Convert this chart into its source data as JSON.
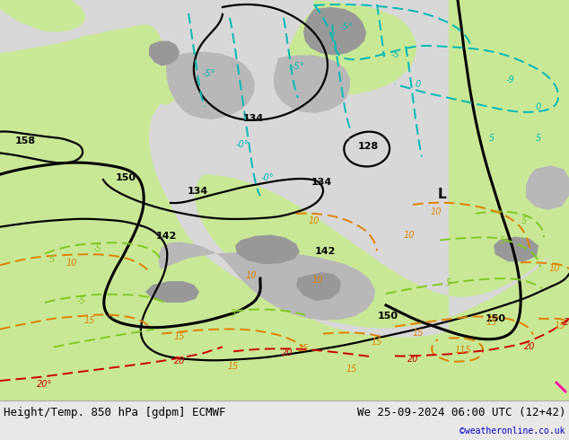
{
  "title_left": "Height/Temp. 850 hPa [gdpm] ECMWF",
  "title_right": "We 25-09-2024 06:00 UTC (12+42)",
  "copyright": "©weatheronline.co.uk",
  "bg_color": "#f0f0f0",
  "fig_width": 6.34,
  "fig_height": 4.9,
  "dpi": 100,
  "colors": {
    "land_light_green": "#c8e896",
    "land_mid_green": "#a8d060",
    "sea_light_gray": "#d8d8d8",
    "sea_mid_gray": "#b8b8b8",
    "mountain_gray": "#989898",
    "geopotential": "#000000",
    "temp_zero_cyan": "#00b8b8",
    "temp_neg_cyan": "#00d0d0",
    "temp_pos_lime": "#80c820",
    "temp_orange": "#e08000",
    "temp_red": "#cc0000",
    "temp_pink": "#ff00aa",
    "bottom_bg": "#e8e8e8",
    "bottom_line": "#aaaaaa",
    "copyright_blue": "#0000cc"
  },
  "font_size_geo_label": 8,
  "font_size_temp_label": 7,
  "font_size_bottom": 9,
  "font_size_copyright": 7
}
